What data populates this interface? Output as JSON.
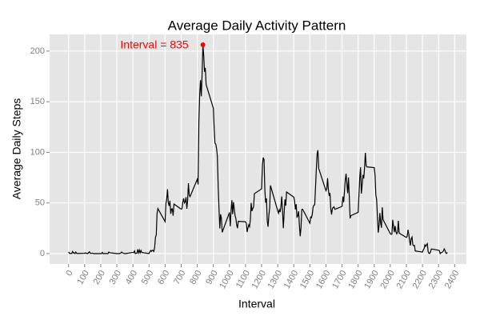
{
  "chart_data": {
    "type": "line",
    "title": "Average Daily Activity Pattern",
    "x_label": "Interval",
    "y_label": "Average Daily Steps",
    "x": [
      0,
      5,
      10,
      15,
      20,
      25,
      30,
      35,
      40,
      45,
      50,
      55,
      100,
      105,
      110,
      115,
      120,
      125,
      130,
      135,
      140,
      145,
      150,
      155,
      200,
      205,
      210,
      215,
      220,
      225,
      230,
      235,
      240,
      245,
      250,
      255,
      300,
      305,
      310,
      315,
      320,
      325,
      330,
      335,
      340,
      345,
      350,
      355,
      400,
      405,
      410,
      415,
      420,
      425,
      430,
      435,
      440,
      445,
      450,
      455,
      500,
      505,
      510,
      515,
      520,
      525,
      530,
      535,
      540,
      545,
      550,
      555,
      600,
      605,
      610,
      615,
      620,
      625,
      630,
      635,
      640,
      645,
      650,
      655,
      700,
      705,
      710,
      715,
      720,
      725,
      730,
      735,
      740,
      745,
      750,
      755,
      800,
      805,
      810,
      815,
      820,
      825,
      830,
      835,
      840,
      845,
      850,
      855,
      900,
      905,
      910,
      915,
      920,
      925,
      930,
      935,
      940,
      945,
      950,
      955,
      1000,
      1005,
      1010,
      1015,
      1020,
      1025,
      1030,
      1035,
      1040,
      1045,
      1050,
      1055,
      1100,
      1105,
      1110,
      1115,
      1120,
      1125,
      1130,
      1135,
      1140,
      1145,
      1150,
      1155,
      1200,
      1205,
      1210,
      1215,
      1220,
      1225,
      1230,
      1235,
      1240,
      1245,
      1250,
      1255,
      1300,
      1305,
      1310,
      1315,
      1320,
      1325,
      1330,
      1335,
      1340,
      1345,
      1350,
      1355,
      1400,
      1405,
      1410,
      1415,
      1420,
      1425,
      1430,
      1435,
      1440,
      1445,
      1450,
      1455,
      1500,
      1505,
      1510,
      1515,
      1520,
      1525,
      1530,
      1535,
      1540,
      1545,
      1550,
      1555,
      1600,
      1605,
      1610,
      1615,
      1620,
      1625,
      1630,
      1635,
      1640,
      1645,
      1650,
      1655,
      1700,
      1705,
      1710,
      1715,
      1720,
      1725,
      1730,
      1735,
      1740,
      1745,
      1750,
      1755,
      1800,
      1805,
      1810,
      1815,
      1820,
      1825,
      1830,
      1835,
      1840,
      1845,
      1850,
      1855,
      1900,
      1905,
      1910,
      1915,
      1920,
      1925,
      1930,
      1935,
      1940,
      1945,
      1950,
      1955,
      2000,
      2005,
      2010,
      2015,
      2020,
      2025,
      2030,
      2035,
      2040,
      2045,
      2050,
      2055,
      2100,
      2105,
      2110,
      2115,
      2120,
      2125,
      2130,
      2135,
      2140,
      2145,
      2150,
      2155,
      2200,
      2205,
      2210,
      2215,
      2220,
      2225,
      2230,
      2235,
      2240,
      2245,
      2250,
      2255,
      2300,
      2305,
      2310,
      2315,
      2320,
      2325,
      2330,
      2335,
      2340,
      2345,
      2350,
      2355
    ],
    "values": [
      1.7,
      0.3,
      0.1,
      0.2,
      0.1,
      2.1,
      0.5,
      0.9,
      0,
      1.5,
      0.3,
      0.1,
      0.3,
      0.7,
      0.2,
      0.3,
      0,
      1.1,
      1.8,
      0.2,
      0.2,
      0.4,
      0.3,
      0,
      0,
      0,
      1.1,
      0,
      0,
      0.1,
      0,
      0.2,
      0,
      0,
      1.5,
      0.9,
      0,
      0,
      0,
      0,
      0.2,
      0.6,
      1.6,
      0.6,
      0.5,
      0.1,
      0,
      0,
      1.2,
      0.9,
      2.6,
      0,
      0.3,
      0.4,
      4.1,
      0.7,
      3.5,
      0.8,
      3.1,
      1.1,
      0,
      1.6,
      3,
      2.2,
      3.3,
      3,
      2.1,
      6.1,
      16,
      18.3,
      39.5,
      44.5,
      31.5,
      49.3,
      53.8,
      63.5,
      50,
      47.1,
      52.2,
      39.3,
      44,
      44.2,
      37.4,
      49,
      43.8,
      44.4,
      50.5,
      54.5,
      49.9,
      51,
      55.7,
      44.3,
      52.3,
      69.5,
      57.8,
      56.2,
      73.4,
      68.2,
      129.4,
      157.5,
      171.2,
      155.4,
      177.3,
      206.2,
      195.9,
      179.6,
      183.4,
      167,
      143.5,
      124,
      109.1,
      108.1,
      103.7,
      96,
      66.2,
      45.2,
      24.8,
      38.8,
      35,
      21,
      40.6,
      27,
      42.4,
      52.7,
      38.9,
      50.8,
      44.3,
      37.4,
      34.7,
      28.3,
      25.1,
      31.9,
      31.4,
      29.7,
      21.3,
      25.5,
      28.4,
      26.5,
      33.4,
      50,
      42,
      44.6,
      46,
      59.2,
      63.9,
      87.7,
      94.8,
      92.8,
      63.4,
      50.2,
      54.5,
      32.4,
      26.5,
      37.7,
      45.1,
      67.3,
      42.3,
      39.9,
      43.3,
      41,
      46.2,
      56.4,
      42.8,
      25.1,
      40,
      53.5,
      47.3,
      60.8,
      55.8,
      52,
      43.6,
      48.7,
      35.5,
      37.5,
      41.8,
      27.5,
      17.1,
      26.1,
      43.6,
      43.8,
      30,
      36.1,
      35.5,
      38.8,
      46,
      47.8,
      48.1,
      65.3,
      82.9,
      98.7,
      102.1,
      84,
      62.1,
      64.1,
      74.5,
      63.2,
      56.9,
      59.8,
      43.9,
      38.6,
      44.7,
      45.5,
      46.2,
      43.7,
      46.6,
      56.3,
      50.7,
      61.2,
      72.7,
      78.9,
      68.9,
      59.7,
      75.1,
      56.5,
      34.8,
      37.5,
      40.7,
      58,
      74.7,
      85.3,
      59.3,
      67.8,
      77.7,
      74.2,
      85.3,
      99.5,
      86.6,
      85.6,
      84.9,
      77.8,
      58,
      53.4,
      36.3,
      20.7,
      27.4,
      40,
      30.2,
      25.5,
      45.7,
      33.5,
      19.6,
      19,
      19.3,
      33.3,
      26.8,
      21.2,
      27.3,
      21.3,
      19.5,
      21.3,
      32.3,
      20.2,
      15.9,
      17.2,
      23.5,
      19.2,
      12.5,
      8,
      14.7,
      16.3,
      8.7,
      7.8,
      8.1,
      2.6,
      1.5,
      3.7,
      4.8,
      8.5,
      7.1,
      8.7,
      9.8,
      2.2,
      0.3,
      0.1,
      1.6,
      4.6,
      3.3,
      2.8,
      0,
      0.8,
      1,
      1.6,
      2.6,
      4.7,
      3.3,
      0.6,
      0.2,
      1.1
    ],
    "color": "#000000",
    "highlight": {
      "x": 835,
      "y": 206.2,
      "label": "Interval =  835",
      "color": "#ff0000"
    },
    "xlim": [
      -118,
      2473
    ],
    "ylim": [
      -10.3,
      216.5
    ],
    "xticks": [
      0,
      100,
      200,
      300,
      400,
      500,
      600,
      700,
      800,
      900,
      1000,
      1100,
      1200,
      1300,
      1400,
      1500,
      1600,
      1700,
      1800,
      1900,
      2000,
      2100,
      2200,
      2300,
      2400
    ],
    "yticks": [
      0,
      50,
      100,
      150,
      200
    ],
    "grid": true
  }
}
